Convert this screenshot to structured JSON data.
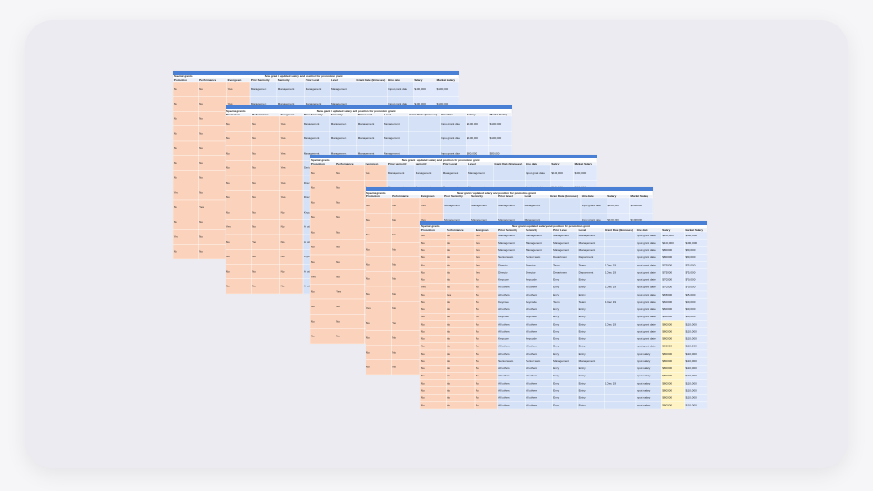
{
  "group_label": "Special grants",
  "banner": "New grant / updated salary and position for promotion grant",
  "headers": [
    "Promotion",
    "Performance",
    "Evergreen",
    "Prior Seniority",
    "Seniority",
    "Prior Level",
    "Level",
    "Grant Date (Bonuses)",
    "Hire date",
    "Salary",
    "Market Salary"
  ],
  "sheets": [
    {
      "rows": [
        [
          "No",
          "No",
          "Yes",
          "Management",
          "Management",
          "Management",
          "Management",
          null,
          "Input grant date",
          "$100,000",
          "$100,000"
        ],
        [
          "No",
          "No",
          "Yes",
          "Management",
          "Management",
          "Management",
          "Management",
          null,
          "Input grant date",
          "$100,000",
          "$100,000"
        ],
        [
          "No",
          "No",
          "Yes",
          "Management",
          "Management",
          "Management",
          "Management",
          null,
          "Input grant date",
          "$80,000",
          "$80,000"
        ],
        [
          "No",
          "No",
          "Yes",
          "Senior team",
          "Senior team",
          "Department",
          "Department",
          null,
          "Input grant date",
          "$80,000",
          "$80,000"
        ],
        [
          "No",
          "No",
          "Yes",
          "Director",
          "Director",
          "Team",
          "Team",
          null,
          "Input grant date",
          "$75,000",
          "$75,000"
        ],
        [
          "No",
          "No",
          "Yes",
          "Director",
          "Director",
          "Department",
          "Department",
          "1 Dec 19",
          "Input grant date",
          "$75,000",
          "$75,000"
        ],
        [
          "No",
          "No",
          "No",
          "Keycode",
          "Keycode",
          "Entry",
          "Entry",
          null,
          "Input grant date",
          "$70,000",
          "$70,000"
        ],
        [
          "Yes",
          "No",
          "No",
          "All others",
          "All others",
          "Entry",
          "Entry",
          "1 Dec 19",
          "Input grant date",
          "$70,000",
          "$70,000"
        ],
        [
          "No",
          "Yes",
          "No",
          "All others",
          "All others",
          "Entry",
          "Entry",
          null,
          "Input grant date",
          "$65,000",
          "$65,000"
        ],
        [
          "No",
          "No",
          "No",
          "Keycode",
          "Keycode",
          "Team",
          "Team",
          null,
          "Input grant date",
          "$60,000",
          "$60,000"
        ],
        [
          "Yes",
          "No",
          "No",
          "All others",
          "All others",
          "Entry",
          "Entry",
          "1 Dec 19",
          "Input grant date",
          "$60,000",
          "$60,000"
        ],
        [
          "No",
          "No",
          "No",
          "All others",
          "All others",
          "Entry",
          "Entry",
          null,
          "Input grant date",
          "$60,000",
          "$60,000"
        ]
      ]
    },
    {
      "rows": [
        [
          "No",
          "No",
          "Yes",
          "Management",
          "Management",
          "Management",
          "Management",
          null,
          "Input grant date",
          "$100,000",
          "$100,000"
        ],
        [
          "No",
          "No",
          "Yes",
          "Management",
          "Management",
          "Management",
          "Management",
          null,
          "Input grant date",
          "$100,000",
          "$100,000"
        ],
        [
          "No",
          "No",
          "Yes",
          "Management",
          "Management",
          "Management",
          "Management",
          null,
          "Input grant date",
          "$80,000",
          "$80,000"
        ],
        [
          "No",
          "No",
          "Yes",
          "Senior team",
          "Senior team",
          "Department",
          "Department",
          null,
          "Input grant date",
          "$80,000",
          "$80,000"
        ],
        [
          "No",
          "No",
          "Yes",
          "Director",
          "Director",
          "Team",
          "Team",
          null,
          "Input grant date",
          "$75,000",
          "$75,000"
        ],
        [
          "No",
          "No",
          "Yes",
          "Director",
          "Director",
          "Department",
          "Department",
          "1 Dec 19",
          "Input grant date",
          "$75,000",
          "$75,000"
        ],
        [
          "No",
          "No",
          "No",
          "Keycode",
          "Keycode",
          "Entry",
          "Entry",
          "1 Dec 19",
          "Input grant date",
          "$70,000",
          "$70,000"
        ],
        [
          "Yes",
          "No",
          "No",
          "All others",
          "All others",
          "Entry",
          "Entry",
          "1 Dec 19",
          "Input grant date",
          "$70,000",
          "$70,000"
        ],
        [
          "No",
          "Yes",
          "No",
          "All others",
          "All others",
          "Entry",
          "Entry",
          null,
          "Input grant date",
          "$65,000",
          "$65,000"
        ],
        [
          "No",
          "No",
          "No",
          "Keycode",
          "Keycode",
          "Team",
          "Team",
          null,
          "Input grant date",
          "$60,000",
          "$60,000"
        ],
        [
          "No",
          "No",
          "No",
          "All others",
          "All others",
          "Entry",
          "Entry",
          null,
          "Input grant date",
          "$60,000",
          "$60,000"
        ],
        [
          "No",
          "No",
          "No",
          "All others",
          "All others",
          "Entry",
          "Entry",
          null,
          "Input grant date",
          "$60,000",
          "$60,000"
        ]
      ]
    },
    {
      "rows": [
        [
          "No",
          "No",
          "Yes",
          "Management",
          "Management",
          "Management",
          "Management",
          null,
          "Input grant date",
          "$100,000",
          "$100,000"
        ],
        [
          "No",
          "No",
          "Yes",
          "Management",
          "Management",
          "Management",
          "Management",
          null,
          "Input grant date",
          "$100,000",
          "$100,000"
        ],
        [
          "No",
          "No",
          "Yes",
          "Management",
          "Management",
          "Management",
          "Management",
          null,
          "Input grant date",
          "$80,000",
          "$80,000"
        ],
        [
          "No",
          "No",
          "Yes",
          "Senior team",
          "Senior team",
          "Department",
          "Department",
          null,
          "Input grant date",
          "$80,000",
          "$80,000"
        ],
        [
          "No",
          "No",
          "Yes",
          "Director",
          "Director",
          "Team",
          "Team",
          null,
          "Input grant date",
          "$75,000",
          "$75,000"
        ],
        [
          "No",
          "No",
          "Yes",
          "Director",
          "Director",
          "Department",
          "Department",
          "1 Dec 19",
          "Input grant date",
          "$75,000",
          "$75,000"
        ],
        [
          "No",
          "No",
          "No",
          "Keycode",
          "Keycode",
          "Entry",
          "Entry",
          null,
          "Input grant date",
          "$70,000",
          "$70,000"
        ],
        [
          "Yes",
          "No",
          "No",
          "All others",
          "All others",
          "Entry",
          "Entry",
          "1 Dec 19",
          "Input grant date",
          "$70,000",
          "$70,000"
        ],
        [
          "No",
          "Yes",
          "No",
          "All others",
          "All others",
          "Entry",
          "Entry",
          null,
          "Input grant date",
          "$65,000",
          "$65,000"
        ],
        [
          "No",
          "No",
          "No",
          "Keycode",
          "Keycode",
          "Team",
          "Team",
          null,
          "Input grant date",
          "$60,000",
          "$60,000"
        ],
        [
          "No",
          "No",
          "No",
          "All others",
          "All others",
          "Entry",
          "Entry",
          null,
          "Input grant date",
          "$60,000",
          "$60,000"
        ],
        [
          "No",
          "No",
          "No",
          "All others",
          "All others",
          "Entry",
          "Entry",
          null,
          "Input grant date",
          "$60,000",
          "$60,000"
        ]
      ]
    },
    {
      "rows": [
        [
          "No",
          "No",
          "Yes",
          "Management",
          "Management",
          "Management",
          "Management",
          null,
          "Input grant date",
          "$100,000",
          "$100,000"
        ],
        [
          "No",
          "No",
          "Yes",
          "Management",
          "Management",
          "Management",
          "Management",
          null,
          "Input grant date",
          "$100,000",
          "$100,000"
        ],
        [
          "No",
          "No",
          "Yes",
          "Management",
          "Management",
          "Management",
          "Management",
          null,
          "Input grant date",
          "$80,000",
          "$80,000"
        ],
        [
          "No",
          "No",
          "Yes",
          "Senior team",
          "Senior team",
          "Department",
          "Department",
          null,
          "Input grant date",
          "$80,000",
          "$80,000"
        ],
        [
          "No",
          "No",
          "Yes",
          "Director",
          "Director",
          "Team",
          "Team",
          null,
          "Input grant date",
          "$75,000",
          "$75,000"
        ],
        [
          "No",
          "No",
          "Yes",
          "Director",
          "Director",
          "Department",
          "Department",
          "1 Dec 19",
          "Input grant date",
          "$75,000",
          "$75,000"
        ],
        [
          "No",
          "No",
          "No",
          "Keycode",
          "Keycode",
          "Entry",
          "Entry",
          null,
          "Input grant date",
          "$70,000",
          "$70,000"
        ],
        [
          "Yes",
          "No",
          "No",
          "All others",
          "All others",
          "Entry",
          "Entry",
          "1 Dec 19",
          "Input grant date",
          "$70,000",
          "$70,000"
        ],
        [
          "No",
          "Yes",
          "No",
          "All others",
          "All others",
          "Entry",
          "Entry",
          null,
          "Input grant date",
          "$65,000",
          "$65,000"
        ],
        [
          "No",
          "No",
          "No",
          "Keycode",
          "Keycode",
          "Team",
          "Team",
          null,
          "Input grant date",
          "$60,000",
          "$60,000"
        ],
        [
          "No",
          "No",
          "No",
          "All others",
          "All others",
          "Entry",
          "Entry",
          null,
          "Input grant date",
          "$60,000",
          "$60,000"
        ],
        [
          "No",
          "No",
          "No",
          "All others",
          "All others",
          "Entry",
          "Entry",
          null,
          "Input grant date",
          "$60,000",
          "$60,000"
        ]
      ]
    },
    {
      "rows": [
        [
          "No",
          "No",
          "Yes",
          "Management",
          "Management",
          "Management",
          "Management",
          null,
          "Input grant date",
          "$100,000",
          "$100,000"
        ],
        [
          "No",
          "No",
          "Yes",
          "Management",
          "Management",
          "Management",
          "Management",
          null,
          "Input grant date",
          "$100,000",
          "$100,000"
        ],
        [
          "No",
          "No",
          "Yes",
          "Management",
          "Management",
          "Management",
          "Management",
          null,
          "Input grant date",
          "$80,000",
          "$80,000"
        ],
        [
          "No",
          "No",
          "Yes",
          "Senior team",
          "Senior team",
          "Department",
          "Department",
          null,
          "Input grant date",
          "$80,000",
          "$80,000"
        ],
        [
          "No",
          "No",
          "Yes",
          "Director",
          "Director",
          "Team",
          "Team",
          "1 Dec 19",
          "Input grant date",
          "$75,000",
          "$75,000"
        ],
        [
          "No",
          "No",
          "Yes",
          "Director",
          "Director",
          "Department",
          "Department",
          "1 Dec 19",
          "Input grant date",
          "$75,000",
          "$75,000"
        ],
        [
          "No",
          "No",
          "No",
          "Keycode",
          "Keycode",
          "Entry",
          "Entry",
          null,
          "Input grant date",
          "$70,000",
          "$70,000"
        ],
        [
          "Yes",
          "No",
          "No",
          "All others",
          "All others",
          "Entry",
          "Entry",
          "1 Dec 19",
          "Input grant date",
          "$70,000",
          "$70,000"
        ],
        [
          "No",
          "Yes",
          "No",
          "All others",
          "All others",
          "Entry",
          "Entry",
          null,
          "Input grant date",
          "$65,000",
          "$65,000"
        ],
        [
          "No",
          "No",
          "No",
          "Keycode",
          "Keycode",
          "Team",
          "Team",
          "1 Dec 19",
          "Input grant date",
          "$60,000",
          "$60,000"
        ],
        [
          "No",
          "No",
          "No",
          "All others",
          "All others",
          "Entry",
          "Entry",
          null,
          "Input grant date",
          "$60,000",
          "$60,000"
        ],
        [
          "No",
          "No",
          "No",
          "Keycode",
          "Keycode",
          "Entry",
          "Entry",
          null,
          "Input grant date",
          "$60,000",
          "$60,000"
        ],
        [
          "No",
          "No",
          "No",
          "All others",
          "All others",
          "Entry",
          "Entry",
          "1 Dec 19",
          "Input grant date",
          "$80,000",
          "$110,000"
        ],
        [
          "No",
          "No",
          "No",
          "All others",
          "All others",
          "Entry",
          "Entry",
          null,
          "Input grant date",
          "$80,000",
          "$110,000"
        ],
        [
          "No",
          "No",
          "No",
          "Keycode",
          "Keycode",
          "Entry",
          "Entry",
          null,
          "Input grant date",
          "$80,000",
          "$110,000"
        ],
        [
          "No",
          "No",
          "No",
          "All others",
          "All others",
          "Entry",
          "Entry",
          null,
          "Input grant date",
          "$80,000",
          "$110,000"
        ],
        [
          "No",
          "No",
          "No",
          "All others",
          "All others",
          "Entry",
          "Entry",
          null,
          "Input salary",
          "$80,000",
          "$110,000"
        ],
        [
          "No",
          "No",
          "No",
          "Senior team",
          "Senior team",
          "Management",
          "Management",
          null,
          "Input salary",
          "$80,000",
          "$110,000"
        ],
        [
          "No",
          "No",
          "No",
          "All others",
          "All others",
          "Entry",
          "Entry",
          null,
          "Input salary",
          "$80,000",
          "$110,000"
        ],
        [
          "No",
          "No",
          "No",
          "All others",
          "All others",
          "Entry",
          "Entry",
          null,
          "Input salary",
          "$80,000",
          "$110,000"
        ],
        [
          "No",
          "No",
          "No",
          "All others",
          "All others",
          "Entry",
          "Entry",
          "1 Dec 19",
          "Input salary",
          "$80,000",
          "$110,000"
        ],
        [
          "No",
          "No",
          "No",
          "All others",
          "All others",
          "Entry",
          "Entry",
          null,
          "Input salary",
          "$80,000",
          "$110,000"
        ],
        [
          "No",
          "No",
          "No",
          "All others",
          "All others",
          "Entry",
          "Entry",
          null,
          "Input salary",
          "$80,000",
          "$110,000"
        ],
        [
          "No",
          "No",
          "No",
          "All others",
          "All others",
          "Entry",
          "Entry",
          null,
          "Input salary",
          "$80,000",
          "$110,000"
        ]
      ]
    }
  ]
}
